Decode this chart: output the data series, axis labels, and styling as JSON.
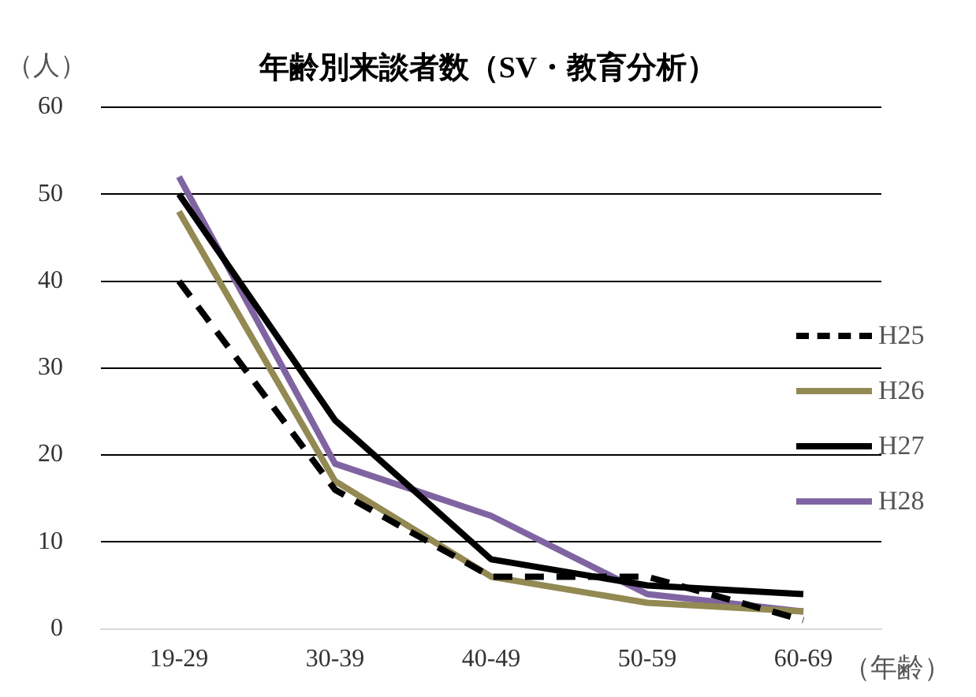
{
  "chart_data": {
    "type": "line",
    "title": "年齢別来談者数（SV・教育分析）",
    "ylabel": "（人）",
    "xlabel": "（年齢）",
    "categories": [
      "19-29",
      "30-39",
      "40-49",
      "50-59",
      "60-69"
    ],
    "series": [
      {
        "name": "H25",
        "color": "#000000",
        "line_style": "dashed",
        "values": [
          40,
          16,
          6,
          6,
          1
        ]
      },
      {
        "name": "H26",
        "color": "#938953",
        "values": [
          48,
          17,
          6,
          3,
          2
        ]
      },
      {
        "name": "H27",
        "color": "#000000",
        "values": [
          50,
          24,
          8,
          5,
          4
        ]
      },
      {
        "name": "H28",
        "color": "#8064a2",
        "values": [
          52,
          19,
          13,
          4,
          2
        ]
      }
    ],
    "ylim": [
      0,
      60
    ],
    "yticks": [
      0,
      10,
      20,
      30,
      40,
      50,
      60
    ],
    "grid": "y",
    "legend": "right",
    "marker": "none"
  }
}
